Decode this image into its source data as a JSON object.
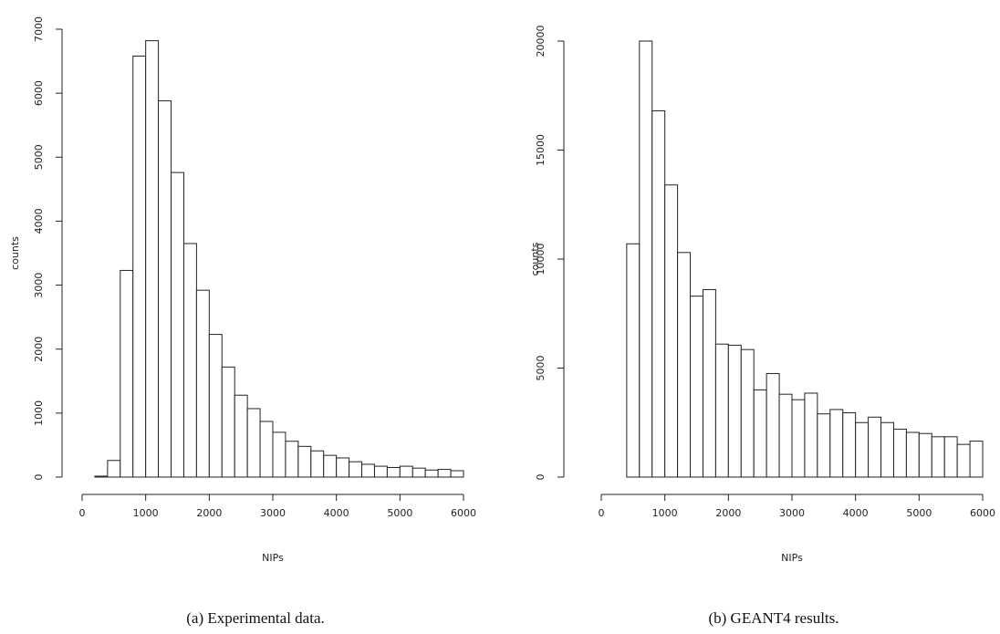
{
  "chart_data": [
    {
      "type": "bar",
      "caption": "(a)  Experimental data.",
      "xlabel": "NIPs",
      "ylabel": "counts",
      "xlim": [
        0,
        6000
      ],
      "ylim": [
        0,
        7000
      ],
      "xticks": [
        0,
        1000,
        2000,
        3000,
        4000,
        5000,
        6000
      ],
      "yticks": [
        0,
        1000,
        2000,
        3000,
        4000,
        5000,
        6000,
        7000
      ],
      "bin_width": 200,
      "bin_start": 200,
      "values": [
        15,
        260,
        3230,
        6580,
        6820,
        5880,
        4760,
        3650,
        2920,
        2230,
        1720,
        1280,
        1070,
        870,
        700,
        560,
        480,
        410,
        340,
        300,
        240,
        200,
        170,
        150,
        170,
        140,
        110,
        120,
        100
      ],
      "grid": false
    },
    {
      "type": "bar",
      "caption": "(b)  GEANT4 results.",
      "xlabel": "NIPs",
      "ylabel": "counts",
      "xlim": [
        0,
        6000
      ],
      "ylim": [
        0,
        20000
      ],
      "xticks": [
        0,
        1000,
        2000,
        3000,
        4000,
        5000,
        6000
      ],
      "yticks": [
        0,
        5000,
        10000,
        15000,
        20000
      ],
      "bin_width": 200,
      "bin_start": 400,
      "values": [
        10700,
        20000,
        16800,
        13400,
        10300,
        8300,
        8600,
        6100,
        6050,
        5850,
        4000,
        4750,
        3800,
        3550,
        3850,
        2900,
        3100,
        2950,
        2500,
        2750,
        2500,
        2200,
        2050,
        2000,
        1850,
        1850,
        1500,
        1650
      ],
      "grid": false
    }
  ]
}
